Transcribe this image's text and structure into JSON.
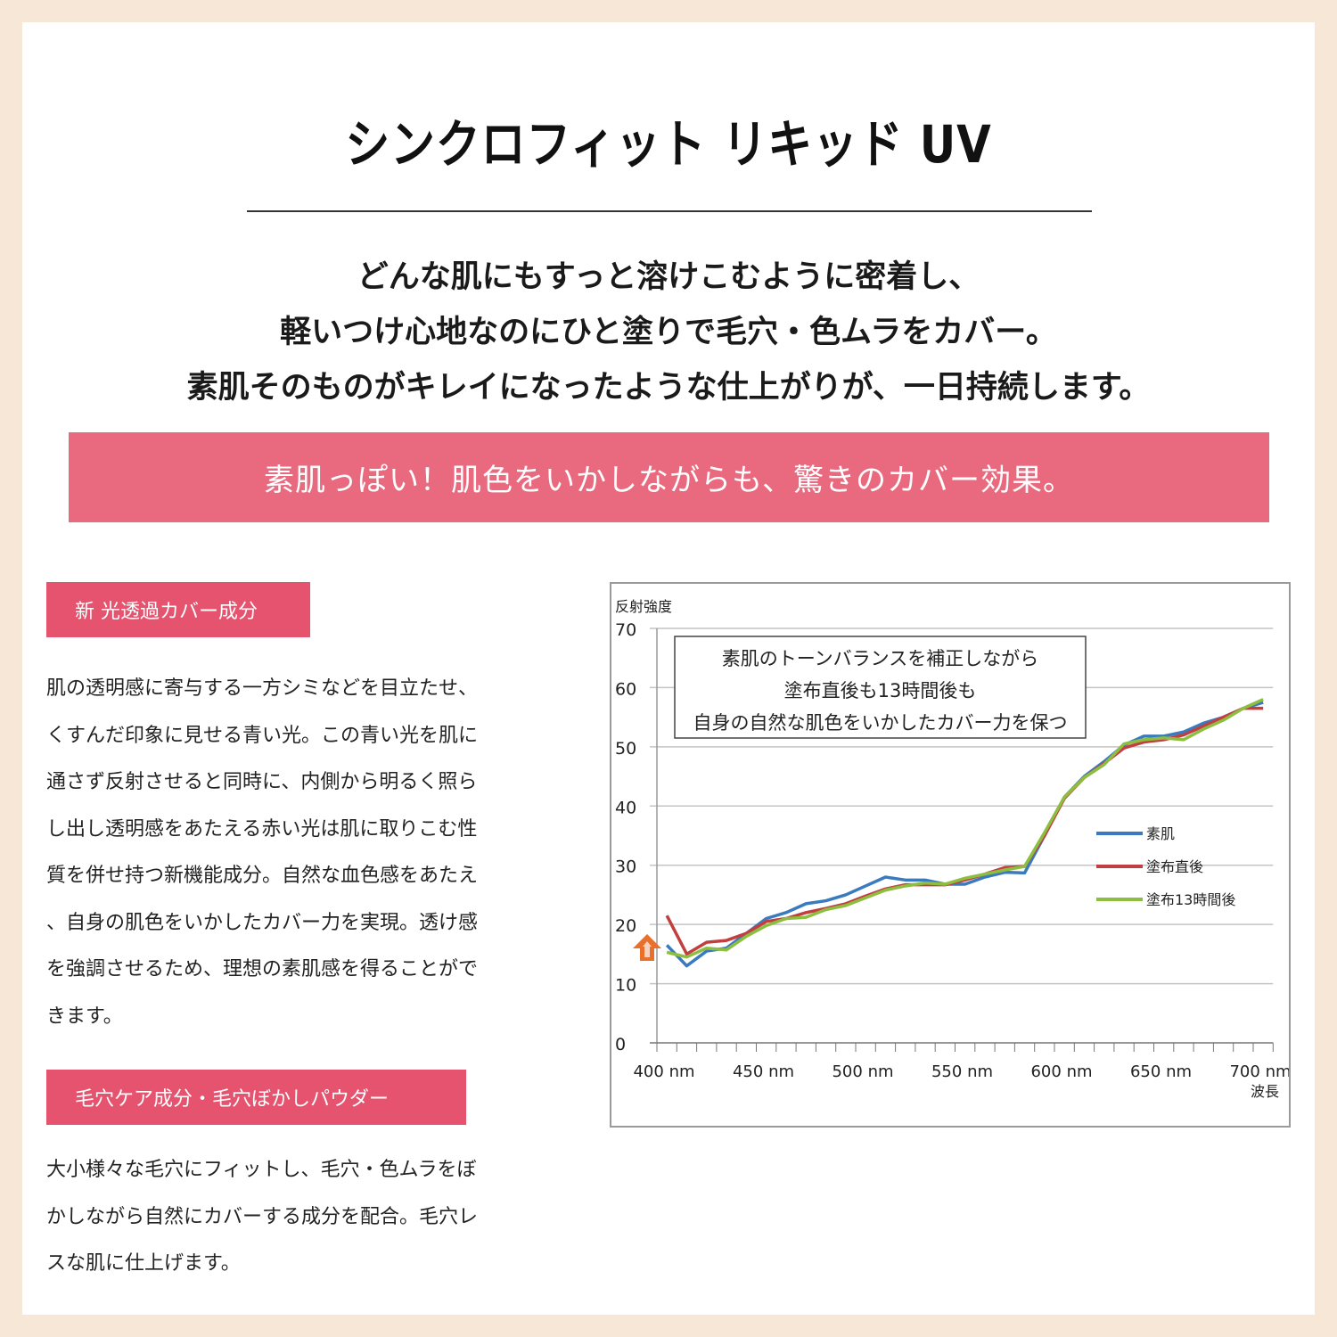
{
  "page": {
    "background_color": "#f6e7d7",
    "card_color": "#ffffff"
  },
  "header": {
    "title": "シンクロフィット リキッド UV"
  },
  "lead": {
    "lines": [
      "どんな肌にもすっと溶けこむように密着し、",
      "軽いつけ心地なのにひと塗りで毛穴・色ムラをカバー。",
      "素肌そのものがキレイになったような仕上がりが、一日持続します。"
    ]
  },
  "banner": {
    "text": "素肌っぽい！肌色をいかしながらも、驚きのカバー効果。",
    "color": "#e96a7f"
  },
  "sections": [
    {
      "tag": "新 光透過カバー成分",
      "tag_color": "#e5536f",
      "lines": [
        "肌の透明感に寄与する一方シミなどを目立たせ、",
        "くすんだ印象に見せる青い光。この青い光を肌に",
        "通さず反射させると同時に、内側から明るく照ら",
        "し出し透明感をあたえる赤い光は肌に取りこむ性",
        "質を併せ持つ新機能成分。自然な血色感をあたえ",
        "、自身の肌色をいかしたカバー力を実現。透け感",
        "を強調させるため、理想の素肌感を得ることがで",
        "きます。"
      ]
    },
    {
      "tag": "毛穴ケア成分・毛穴ぼかしパウダー",
      "tag_color": "#e5536f",
      "lines": [
        "大小様々な毛穴にフィットし、毛穴・色ムラをぼ",
        "かしながら自然にカバーする成分を配合。毛穴レ",
        "スな肌に仕上げます。"
      ]
    }
  ],
  "chart_data": {
    "type": "line",
    "title": "",
    "ylabel": "反射強度",
    "xlabel": "波長",
    "ylim": [
      0,
      70
    ],
    "yticks": [
      0,
      10,
      20,
      30,
      40,
      50,
      60,
      70
    ],
    "xlim": [
      400,
      710
    ],
    "xtick_labels": [
      "400 nm",
      "450 nm",
      "500 nm",
      "550 nm",
      "600 nm",
      "650 nm",
      "700 nm"
    ],
    "xticks": [
      400,
      450,
      500,
      550,
      600,
      650,
      700
    ],
    "grid": true,
    "legend_position": "right-middle",
    "annotation": {
      "lines": [
        "素肌のトーンバランスを補正しながら",
        "塗布直後も13時間後も",
        "自身の自然な肌色をいかしたカバー力を保つ"
      ]
    },
    "marker": "orange-up-arrow-at-400nm",
    "x": [
      405,
      415,
      425,
      435,
      445,
      455,
      465,
      475,
      485,
      495,
      505,
      515,
      525,
      535,
      545,
      555,
      565,
      575,
      585,
      595,
      605,
      615,
      625,
      635,
      645,
      655,
      665,
      675,
      685,
      695,
      705
    ],
    "series": [
      {
        "name": "素肌",
        "color": "#3a7bbf",
        "values": [
          16.5,
          13,
          15.5,
          16,
          18.5,
          21,
          22,
          23.5,
          24,
          25,
          26.5,
          28,
          27.5,
          27.5,
          26.8,
          26.8,
          28,
          28.8,
          28.7,
          35,
          41.5,
          45,
          47.5,
          50.3,
          51.8,
          51.8,
          52.5,
          54,
          55,
          56.5,
          57.5
        ]
      },
      {
        "name": "塗布直後",
        "color": "#c33f3f",
        "values": [
          21.5,
          15,
          17,
          17.3,
          18.5,
          20.5,
          21,
          22,
          22.7,
          23.5,
          24.8,
          26,
          26.7,
          26.7,
          26.7,
          27.5,
          28.5,
          29.6,
          29.8,
          35,
          41.3,
          44.8,
          47.2,
          49.8,
          50.8,
          51.2,
          52,
          53.5,
          55,
          56.5,
          56.5
        ]
      },
      {
        "name": "塗布13時間後",
        "color": "#8cbf3f",
        "values": [
          15.3,
          14.5,
          16,
          15.7,
          18,
          19.8,
          21,
          21.2,
          22.5,
          23.2,
          24.5,
          25.8,
          26.5,
          27,
          26.8,
          27.8,
          28.5,
          29.2,
          29.8,
          35.5,
          41.5,
          44.8,
          47,
          50.5,
          51.2,
          51.5,
          51.2,
          53,
          54.5,
          56.5,
          58
        ]
      }
    ]
  }
}
